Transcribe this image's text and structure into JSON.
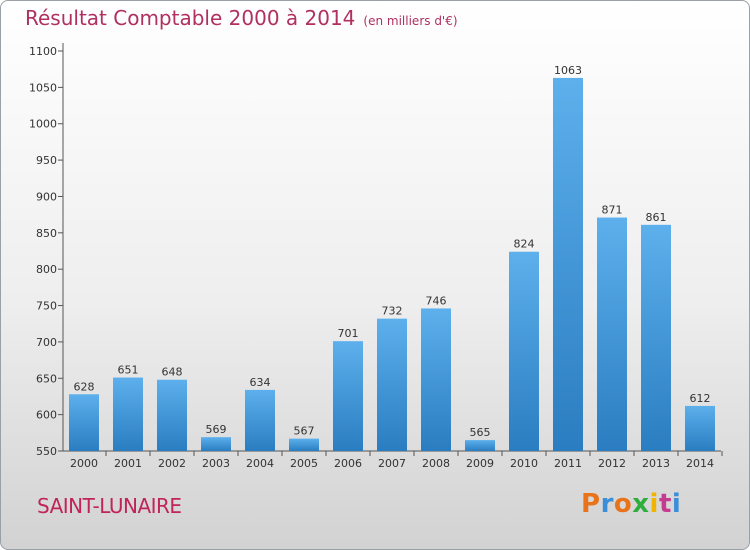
{
  "header": {
    "title": "Résultat Comptable 2000 à 2014",
    "subtitle": "(en milliers d'€)"
  },
  "footer": {
    "commune": "SAINT-LUNAIRE",
    "logo_letters": [
      "P",
      "r",
      "o",
      "x",
      "i",
      "t",
      "i"
    ],
    "logo_colors": [
      "#e8731a",
      "#3a8fd8",
      "#e8731a",
      "#2eae3c",
      "#f0b400",
      "#c43b8f",
      "#3a8fd8"
    ]
  },
  "colors": {
    "bar_top": "#5db0ec",
    "bar_bottom": "#2a7dc0"
  },
  "chart_data": {
    "type": "bar",
    "title": "Résultat Comptable 2000 à 2014",
    "subtitle": "(en milliers d'€)",
    "categories": [
      "2000",
      "2001",
      "2002",
      "2003",
      "2004",
      "2005",
      "2006",
      "2007",
      "2008",
      "2009",
      "2010",
      "2011",
      "2012",
      "2013",
      "2014"
    ],
    "values": [
      628,
      651,
      648,
      569,
      634,
      567,
      701,
      732,
      746,
      565,
      824,
      1063,
      871,
      861,
      612
    ],
    "ylim": [
      550,
      1100
    ],
    "yticks": [
      550,
      600,
      650,
      700,
      750,
      800,
      850,
      900,
      950,
      1000,
      1050,
      1100
    ],
    "grid": false,
    "data_labels": true
  }
}
